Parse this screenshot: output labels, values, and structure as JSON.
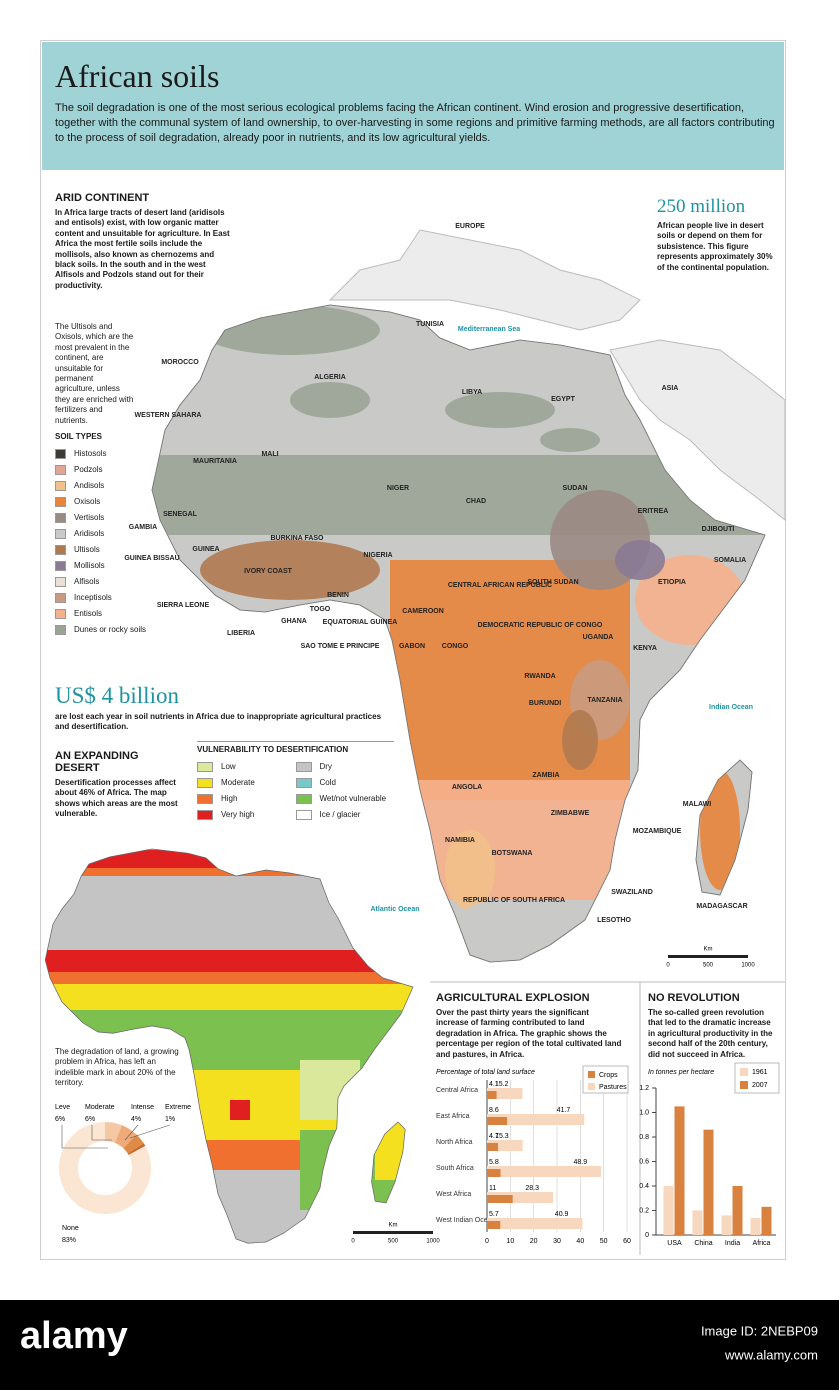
{
  "header": {
    "title": "African soils",
    "intro": "The soil degradation is one of the most serious ecological problems facing the African continent. Wind erosion and progressive desertification, together with the communal system of land ownership, to over-harvesting in some regions and primitive farming methods, are all factors contributing to the process of soil degradation, already poor in nutrients, and its low agricultural yields."
  },
  "arid": {
    "title": "ARID CONTINENT",
    "text": "In Africa large tracts of desert land (aridisols and entisols) exist, with low organic matter content and unsuitable for agriculture. In East Africa the most fertile soils include the mollisols, also known as chernozems and black soils. In the south and in the west Alfisols and Podzols stand out for their productivity."
  },
  "ultisols": {
    "text": "The Ultisols and Oxisols, which are the most prevalent in the continent, are unsuitable for permanent agriculture, unless they are enriched with fertilizers and nutrients."
  },
  "soil_types": {
    "title": "SOIL TYPES",
    "items": [
      {
        "label": "Histosols",
        "color": "#3d3a36"
      },
      {
        "label": "Podzols",
        "color": "#e3a593"
      },
      {
        "label": "Andisols",
        "color": "#f2c08a"
      },
      {
        "label": "Oxisols",
        "color": "#e8843c"
      },
      {
        "label": "Vertisols",
        "color": "#9a8a84"
      },
      {
        "label": "Aridisols",
        "color": "#c9cac8"
      },
      {
        "label": "Ultisols",
        "color": "#b07a50"
      },
      {
        "label": "Mollisols",
        "color": "#8a7a94"
      },
      {
        "label": "Alfisols",
        "color": "#e9e0d6"
      },
      {
        "label": "Inceptisols",
        "color": "#c99a80"
      },
      {
        "label": "Entisols",
        "color": "#f5b08c"
      },
      {
        "label": "Dunes or rocky soils",
        "color": "#9aa496"
      }
    ]
  },
  "stat_people": {
    "figure": "250 million",
    "text": "African people live in desert soils or depend on them for subsistence. This figure represents approximately 30% of the continental population."
  },
  "stat_money": {
    "figure": "US$ 4 billion",
    "text": "are lost each year in soil nutrients in Africa due to inappropriate agricultural practices and desertification."
  },
  "desert": {
    "title": "AN EXPANDING DESERT",
    "text": "Desertification processes affect about 46% of Africa. The map shows which areas are the most vulnerable."
  },
  "vulnerability": {
    "title": "VULNERABILITY TO DESERTIFICATION",
    "items": [
      {
        "label": "Low",
        "color": "#d9e89a"
      },
      {
        "label": "Moderate",
        "color": "#f5e020"
      },
      {
        "label": "High",
        "color": "#f07030"
      },
      {
        "label": "Very high",
        "color": "#e02020"
      },
      {
        "label": "Dry",
        "color": "#c4c4c4"
      },
      {
        "label": "Cold",
        "color": "#7ac8c8"
      },
      {
        "label": "Wet/not vulnerable",
        "color": "#7cc050"
      },
      {
        "label": "Ice / glacier",
        "color": "#ffffff"
      }
    ]
  },
  "map": {
    "labels": [
      "EUROPE",
      "TUNISIA",
      "MOROCCO",
      "ALGERIA",
      "LIBYA",
      "EGYPT",
      "ASIA",
      "WESTERN SAHARA",
      "MAURITANIA",
      "MALI",
      "NIGER",
      "CHAD",
      "SUDAN",
      "ERITREA",
      "DJIBOUTI",
      "SENEGAL",
      "GAMBIA",
      "GUINEA",
      "GUINEA BISSAU",
      "BURKINA FASO",
      "NIGERIA",
      "SOMALIA",
      "IVORY COAST",
      "CENTRAL AFRICAN REPUBLIC",
      "SOUTH SUDAN",
      "ETIOPIA",
      "SIERRA LEONE",
      "LIBERIA",
      "GHANA",
      "TOGO",
      "BENIN",
      "EQUATORIAL GUINEA",
      "CAMEROON",
      "SAO TOME E PRINCIPE",
      "GABON",
      "CONGO",
      "DEMOCRATIC REPUBLIC OF CONGO",
      "UGANDA",
      "KENYA",
      "RWANDA",
      "BURUNDI",
      "TANZANIA",
      "ANGOLA",
      "ZAMBIA",
      "MALAWI",
      "ZIMBABWE",
      "NAMIBIA",
      "MOZAMBIQUE",
      "BOTSWANA",
      "SWAZILAND",
      "REPUBLIC OF SOUTH AFRICA",
      "LESOTHO",
      "MADAGASCAR"
    ],
    "seas": [
      "Mediterranean Sea",
      "Indian Ocean",
      "Atlantic Ocean"
    ],
    "scale": {
      "unit": "Km",
      "ticks": [
        "0",
        "500",
        "1000"
      ]
    }
  },
  "chart_data": [
    {
      "type": "bar",
      "orientation": "horizontal",
      "title": "AGRICULTURAL EXPLOSION",
      "subtitle": "Over the past thirty years the significant increase of farming contributed to land degradation in Africa. The graphic shows the percentage per region of the total cultivated land and pastures, in Africa.",
      "x_label": "Percentage of total land surface",
      "categories": [
        "Central Africa",
        "East Africa",
        "North Africa",
        "South Africa",
        "West Africa",
        "West Indian Ocean"
      ],
      "series": [
        {
          "name": "Crops",
          "color": "#d9823f",
          "values": [
            4.1,
            8.6,
            4.7,
            5.8,
            11,
            5.7
          ]
        },
        {
          "name": "Pastures",
          "color": "#f7d7bd",
          "values": [
            15.2,
            41.7,
            15.3,
            48.9,
            28.3,
            40.9
          ]
        }
      ],
      "xlim": [
        0,
        60
      ],
      "xticks": [
        0,
        10,
        20,
        30,
        40,
        50,
        60
      ]
    },
    {
      "type": "bar",
      "orientation": "vertical",
      "title": "NO REVOLUTION",
      "subtitle": "The so-called green revolution that led to the dramatic increase in agricultural productivity in the second half of the 20th century, did not succeed in Africa.",
      "y_label": "In tonnes per hectare",
      "categories": [
        "USA",
        "China",
        "India",
        "Africa"
      ],
      "series": [
        {
          "name": "1961",
          "color": "#f7d7bd",
          "values": [
            0.4,
            0.2,
            0.16,
            0.14
          ]
        },
        {
          "name": "2007",
          "color": "#d9823f",
          "values": [
            1.05,
            0.86,
            0.4,
            0.23
          ]
        }
      ],
      "ylim": [
        0,
        1.2
      ],
      "yticks": [
        0,
        0.2,
        0.4,
        0.6,
        0.8,
        {
          "value": 1,
          "label": "1.0"
        },
        1.2
      ]
    },
    {
      "type": "pie",
      "subtitle": "The degradation of land, a growing problem in Africa, has left an indelible mark in about 20% of the territory.",
      "categories": [
        "Leve",
        "Moderate",
        "Intense",
        "Extreme",
        "None"
      ],
      "values": [
        6,
        6,
        4,
        1,
        83
      ],
      "value_labels": [
        "6%",
        "6%",
        "4%",
        "1%",
        "83%"
      ],
      "colors": [
        "#f4c8a4",
        "#efaa78",
        "#e08a48",
        "#c86a28",
        "#fbe6d4"
      ]
    }
  ],
  "footer": {
    "brand": "alamy",
    "image_id": "Image ID: 2NEBP09",
    "site": "www.alamy.com"
  }
}
